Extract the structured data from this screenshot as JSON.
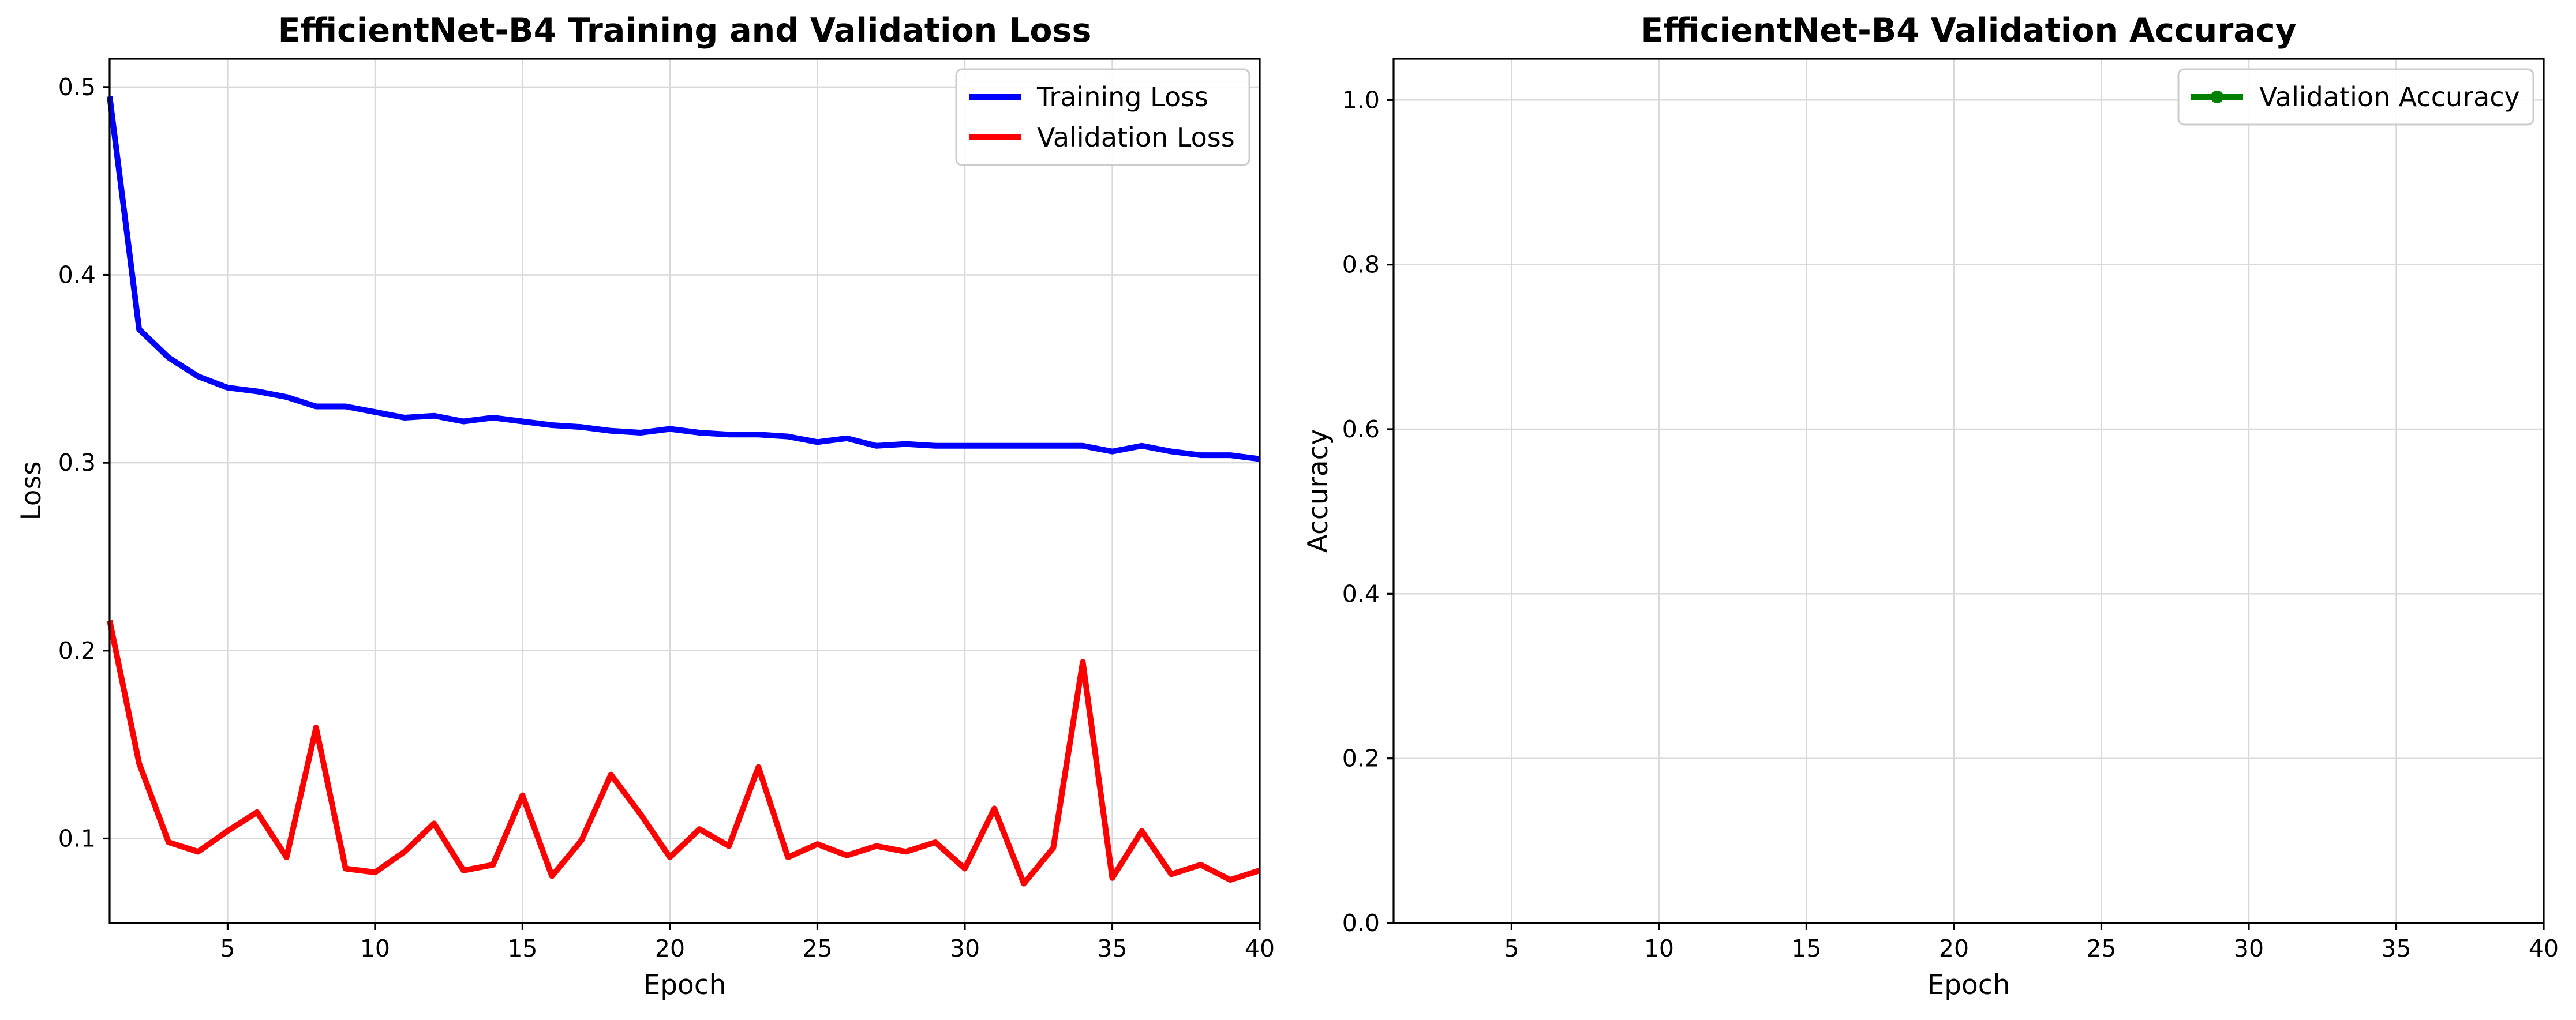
{
  "colors": {
    "training_loss": "#0000ff",
    "validation_loss": "#ff0000",
    "validation_accuracy": "#008000",
    "grid": "#d9d9d9"
  },
  "chart_data": [
    {
      "type": "line",
      "title": "EfficientNet-B4 Training and Validation Loss",
      "xlabel": "Epoch",
      "ylabel": "Loss",
      "xlim": [
        1,
        40
      ],
      "ylim": [
        0.055,
        0.515
      ],
      "xticks": [
        5,
        10,
        15,
        20,
        25,
        30,
        35,
        40
      ],
      "yticks": [
        0.1,
        0.2,
        0.3,
        0.4,
        0.5
      ],
      "ytick_labels": [
        "0.1",
        "0.2",
        "0.3",
        "0.4",
        "0.5"
      ],
      "grid": true,
      "legend": "top-right",
      "x": [
        1,
        2,
        3,
        4,
        5,
        6,
        7,
        8,
        9,
        10,
        11,
        12,
        13,
        14,
        15,
        16,
        17,
        18,
        19,
        20,
        21,
        22,
        23,
        24,
        25,
        26,
        27,
        28,
        29,
        30,
        31,
        32,
        33,
        34,
        35,
        36,
        37,
        38,
        39,
        40
      ],
      "series": [
        {
          "name": "Training Loss",
          "color": "#0000ff",
          "values": [
            0.495,
            0.371,
            0.356,
            0.346,
            0.34,
            0.338,
            0.335,
            0.33,
            0.33,
            0.327,
            0.324,
            0.325,
            0.322,
            0.324,
            0.322,
            0.32,
            0.319,
            0.317,
            0.316,
            0.318,
            0.316,
            0.315,
            0.315,
            0.314,
            0.311,
            0.313,
            0.309,
            0.31,
            0.309,
            0.309,
            0.309,
            0.309,
            0.309,
            0.309,
            0.306,
            0.309,
            0.306,
            0.304,
            0.304,
            0.302
          ]
        },
        {
          "name": "Validation Loss",
          "color": "#ff0000",
          "values": [
            0.216,
            0.14,
            0.098,
            0.093,
            0.104,
            0.114,
            0.09,
            0.159,
            0.084,
            0.082,
            0.093,
            0.108,
            0.083,
            0.086,
            0.123,
            0.08,
            0.099,
            0.134,
            0.113,
            0.09,
            0.105,
            0.096,
            0.138,
            0.09,
            0.097,
            0.091,
            0.096,
            0.093,
            0.098,
            0.084,
            0.116,
            0.076,
            0.095,
            0.194,
            0.079,
            0.104,
            0.081,
            0.086,
            0.078,
            0.083
          ]
        }
      ]
    },
    {
      "type": "line",
      "title": "EfficientNet-B4 Validation Accuracy",
      "xlabel": "Epoch",
      "ylabel": "Accuracy",
      "xlim": [
        1,
        40
      ],
      "ylim": [
        0.0,
        1.05
      ],
      "xticks": [
        5,
        10,
        15,
        20,
        25,
        30,
        35,
        40
      ],
      "yticks": [
        0.0,
        0.2,
        0.4,
        0.6,
        0.8,
        1.0
      ],
      "ytick_labels": [
        "0.0",
        "0.2",
        "0.4",
        "0.6",
        "0.8",
        "1.0"
      ],
      "grid": true,
      "legend": "top-right",
      "series": [
        {
          "name": "Validation Accuracy",
          "color": "#008000",
          "marker": "circle",
          "values": []
        }
      ]
    }
  ]
}
